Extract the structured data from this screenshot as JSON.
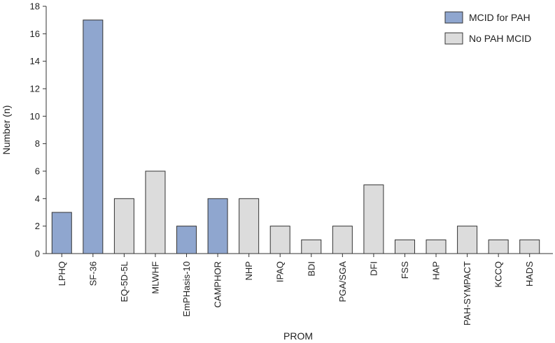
{
  "chart_data": {
    "type": "bar",
    "xlabel": "PROM",
    "ylabel": "Number (n)",
    "ylim": [
      0,
      18
    ],
    "yticks": [
      0,
      2,
      4,
      6,
      8,
      10,
      12,
      14,
      16,
      18
    ],
    "grid": false,
    "legend_position": "top-right",
    "categories": [
      "LPHQ",
      "SF-36",
      "EQ-5D-5L",
      "MLWHF",
      "EmPHasis-10",
      "CAMPHOR",
      "NHP",
      "IPAQ",
      "BDI",
      "PGA/SGA",
      "DFI",
      "FSS",
      "HAP",
      "PAH-SYMPACT",
      "KCCQ",
      "HADS"
    ],
    "values": [
      3,
      17,
      4,
      6,
      2,
      4,
      4,
      2,
      1,
      2,
      5,
      1,
      1,
      2,
      1,
      1
    ],
    "groups": [
      "MCID for PAH",
      "MCID for PAH",
      "No PAH MCID",
      "No PAH MCID",
      "MCID for PAH",
      "MCID for PAH",
      "No PAH MCID",
      "No PAH MCID",
      "No PAH MCID",
      "No PAH MCID",
      "No PAH MCID",
      "No PAH MCID",
      "No PAH MCID",
      "No PAH MCID",
      "No PAH MCID",
      "No PAH MCID"
    ],
    "legend": [
      {
        "name": "MCID for PAH",
        "color": "#8fa6cf"
      },
      {
        "name": "No PAH MCID",
        "color": "#dcdcdc"
      }
    ],
    "bar_edge_color": "#333333"
  }
}
